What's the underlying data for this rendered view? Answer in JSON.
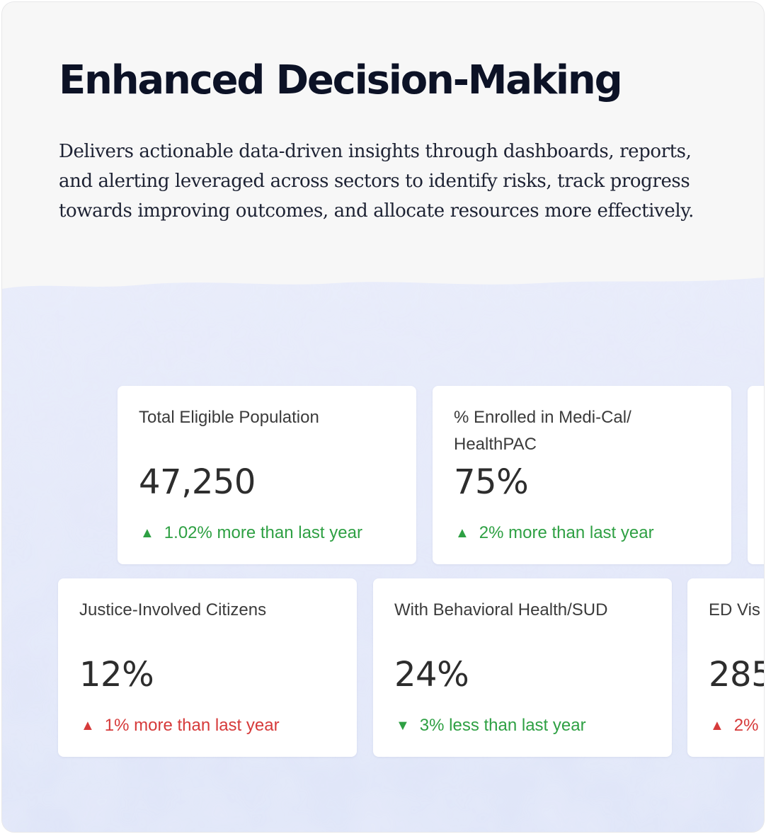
{
  "header": {
    "title": "Enhanced Decision-Making",
    "description": "Delivers actionable data-driven insights through dashboards, reports, and alerting leveraged across sectors to identify risks, track progress towards improving outcomes, and allocate resources more effectively."
  },
  "colors": {
    "increase_good": "#2ea043",
    "increase_bad": "#d63a3a",
    "background_wash": "#e3e8fa"
  },
  "metrics_row1": [
    {
      "label": "Total Eligible Population",
      "value": "47,250",
      "change": "1.02% more than last year",
      "direction": "up",
      "status": "good"
    },
    {
      "label": "% Enrolled in Medi-Cal/ HealthPAC",
      "value": "75%",
      "change": "2% more than last year",
      "direction": "up",
      "status": "good"
    },
    {
      "label": "",
      "value": "",
      "change": "",
      "direction": "",
      "status": ""
    }
  ],
  "metrics_row2": [
    {
      "label": "Justice-Involved Citizens",
      "value": "12%",
      "change": "1% more than last year",
      "direction": "up",
      "status": "bad"
    },
    {
      "label": "With Behavioral Health/SUD",
      "value": "24%",
      "change": "3% less than last year",
      "direction": "down",
      "status": "good"
    },
    {
      "label": "ED Vis",
      "value": "285",
      "change": "2%",
      "direction": "up",
      "status": "bad"
    }
  ],
  "icons": {
    "up": "triangle-up-icon",
    "down": "triangle-down-icon"
  }
}
